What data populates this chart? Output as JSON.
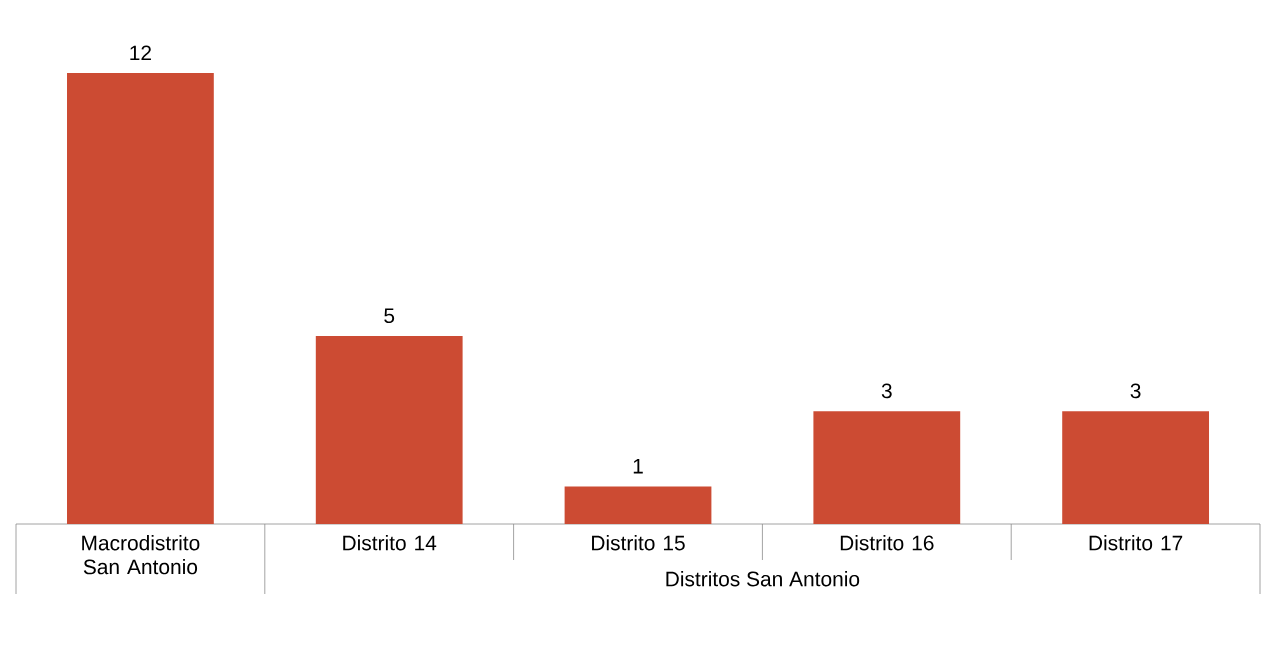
{
  "chart_data": {
    "type": "bar",
    "categories": [
      "Macrodistrito San Antonio",
      "Distrito 14",
      "Distrito 15",
      "Distrito 16",
      "Distrito 17"
    ],
    "values": [
      12,
      5,
      1,
      3,
      3
    ],
    "color": "#cc4b33",
    "data_labels": true,
    "annotations": [
      "Distritos San Antonio"
    ]
  }
}
